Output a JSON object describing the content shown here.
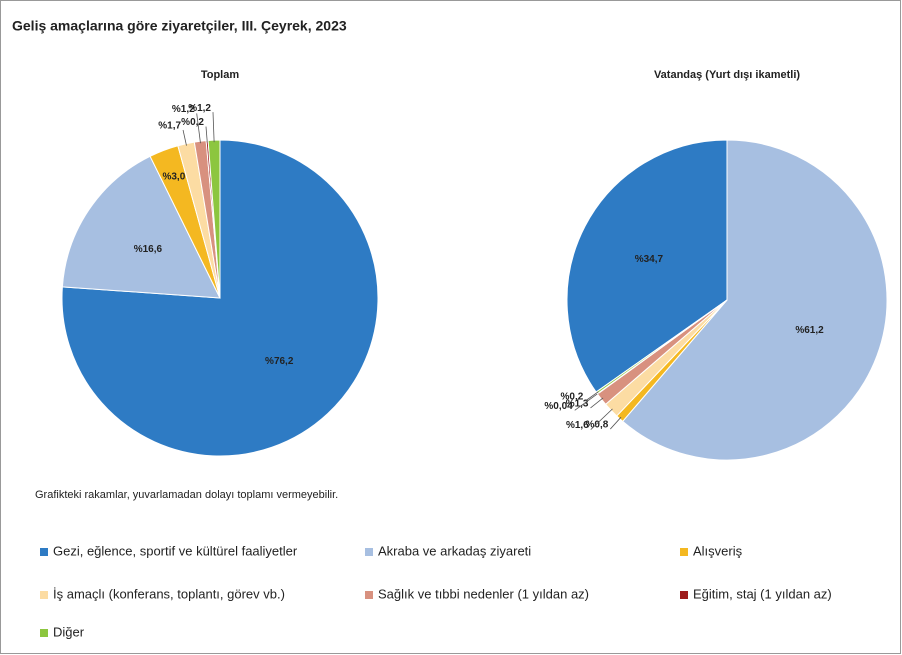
{
  "title": "Geliş amaçlarına göre ziyaretçiler, III. Çeyrek, 2023",
  "note": "Grafikteki rakamlar, yuvarlamadan dolayı toplamı vermeyebilir.",
  "chart_data": [
    {
      "type": "pie",
      "title": "Toplam",
      "categories": [
        "Gezi, eğlence, sportif ve kültürel faaliyetler",
        "Akraba ve arkadaş ziyareti",
        "Alışveriş",
        "İş amaçlı (konferans, toplantı, görev vb.)",
        "Sağlık ve tıbbi nedenler (1 yıldan az)",
        "Eğitim, staj (1 yıldan az)",
        "Diğer"
      ],
      "values": [
        76.2,
        16.6,
        3.0,
        1.7,
        1.2,
        0.2,
        1.2
      ],
      "value_labels": [
        "%76,2",
        "%16,6",
        "%3,0",
        "%1,7",
        "%1,2",
        "%0,2",
        "%1,2"
      ],
      "colors": [
        "#2e7bc4",
        "#a7bfe1",
        "#f4b821",
        "#fcdca3",
        "#d8917f",
        "#9e1c1c",
        "#8cc63f"
      ]
    },
    {
      "type": "pie",
      "title": "Vatandaş (Yurt dışı ikametli)",
      "categories": [
        "Gezi, eğlence, sportif ve kültürel faaliyetler",
        "Akraba ve arkadaş ziyareti",
        "Alışveriş",
        "İş amaçlı (konferans, toplantı, görev vb.)",
        "Sağlık ve tıbbi nedenler (1 yıldan az)",
        "Eğitim, staj (1 yıldan az)",
        "Diğer"
      ],
      "values": [
        34.7,
        61.2,
        0.8,
        1.6,
        1.3,
        0.04,
        0.2
      ],
      "value_labels": [
        "%34,7",
        "%61,2",
        "%0,8",
        "%1,6",
        "%1,3",
        "%0,04",
        "%0,2"
      ],
      "colors": [
        "#2e7bc4",
        "#a7bfe1",
        "#f4b821",
        "#fcdca3",
        "#d8917f",
        "#9e1c1c",
        "#8cc63f"
      ]
    }
  ]
}
